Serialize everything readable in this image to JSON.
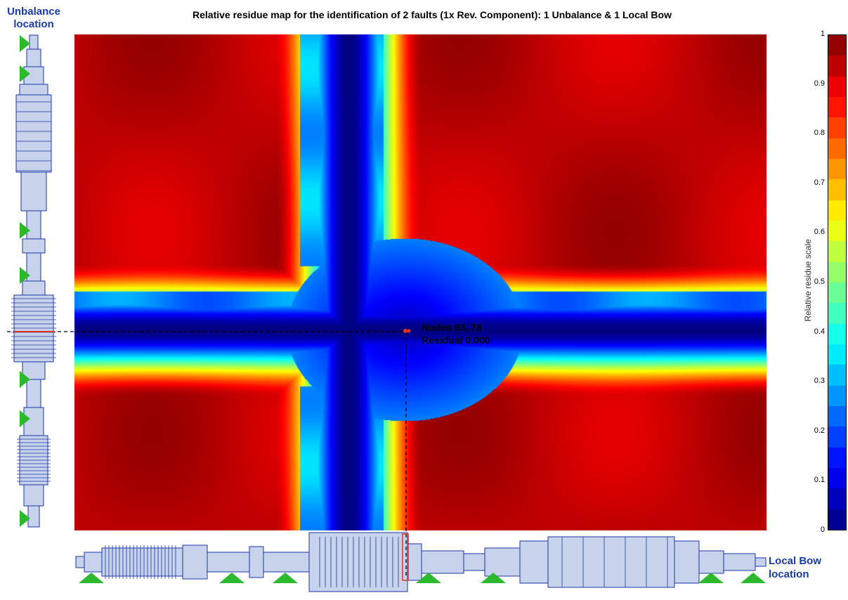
{
  "chart_data": {
    "type": "heatmap",
    "title": "Relative residue map for the identification of 2 faults (1x Rev. Component):  1 Unbalance & 1 Local Bow",
    "y_axis_label": "Unbalance location",
    "x_axis_label": "Local Bow location",
    "colorbar": {
      "label": "Relative residue scale",
      "range": [
        0,
        1
      ],
      "ticks": [
        "1",
        "0.9",
        "0.8",
        "0.7",
        "0.6",
        "0.5",
        "0.4",
        "0.3",
        "0.2",
        "0.1",
        "0"
      ]
    },
    "annotation": {
      "line1": "Nodes 93, 78",
      "line2": "Residual 0.000",
      "nodes": [
        93,
        78
      ],
      "residual": 0.0
    },
    "bands": {
      "horizontal_low_band_rows": "roughly middle third of map",
      "vertical_low_band_columns": "roughly center-left third of map"
    },
    "colors": {
      "high": "#8b0000",
      "mid": "#ffff00",
      "low": "#00008b",
      "support_marker": "#2db82d",
      "rotor_fill": "#c7d3ea",
      "rotor_line": "#1c35a8",
      "label_color": "#1a3aa6"
    }
  }
}
